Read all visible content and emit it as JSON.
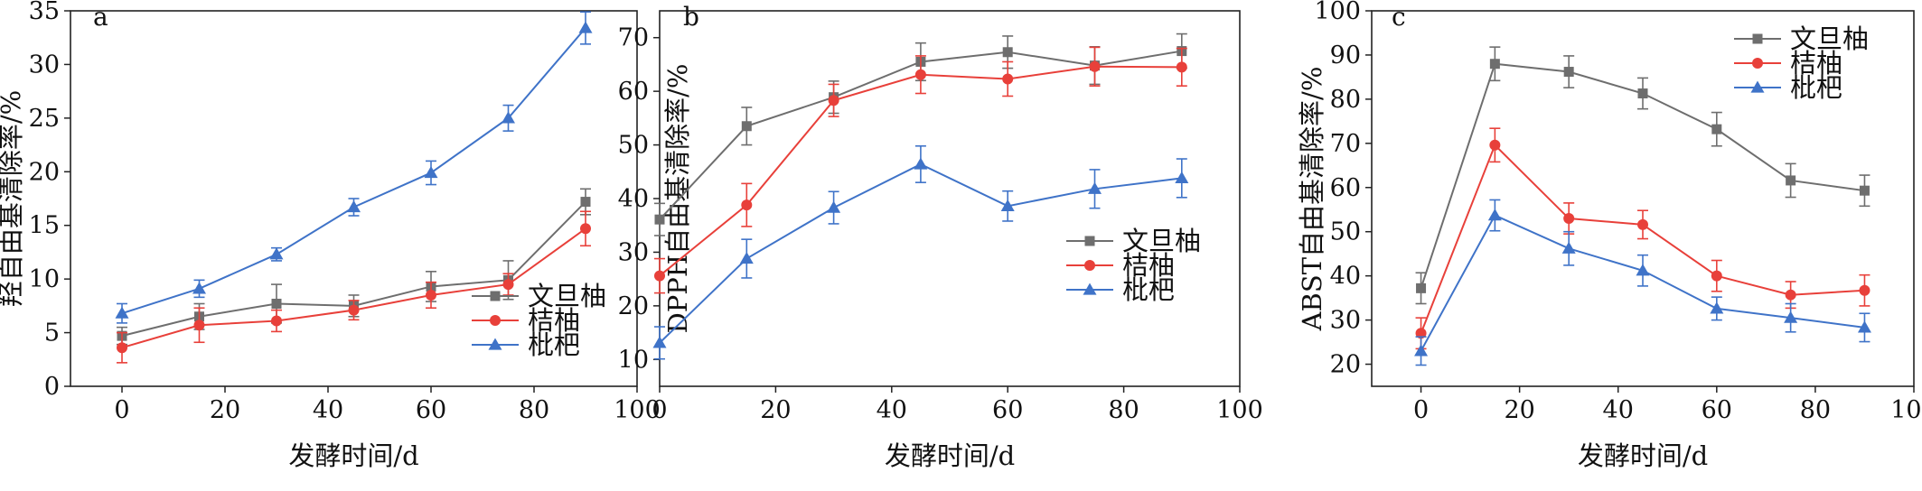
{
  "chart_data": [
    {
      "type": "line",
      "panel_label": "a",
      "xlabel": "发酵时间/d",
      "ylabel": "羟自由基清除率/%",
      "xlim": [
        -10,
        100
      ],
      "ylim": [
        0,
        35
      ],
      "x_ticks": [
        "0",
        "20",
        "40",
        "60",
        "80",
        "100"
      ],
      "y_ticks": [
        "0",
        "5",
        "10",
        "15",
        "20",
        "25",
        "30",
        "35"
      ],
      "legend_position": "lower-right",
      "x": [
        0,
        15,
        30,
        45,
        60,
        75,
        90
      ],
      "series": [
        {
          "name": "文旦柚",
          "color": "#6e6e6e",
          "marker": "square",
          "values": [
            4.7,
            6.5,
            7.7,
            7.5,
            9.3,
            9.9,
            17.2
          ],
          "errors": [
            0.8,
            1.2,
            1.8,
            1.0,
            1.4,
            1.8,
            1.2
          ]
        },
        {
          "name": "桔柚",
          "color": "#e8403a",
          "marker": "circle",
          "values": [
            3.6,
            5.7,
            6.1,
            7.1,
            8.5,
            9.5,
            14.7
          ],
          "errors": [
            1.4,
            1.6,
            1.0,
            0.9,
            1.2,
            1.0,
            1.6
          ]
        },
        {
          "name": "枇杷",
          "color": "#3f73c8",
          "marker": "triangle",
          "values": [
            6.8,
            9.1,
            12.3,
            16.7,
            19.9,
            25.0,
            33.4
          ],
          "errors": [
            0.9,
            0.8,
            0.6,
            0.8,
            1.1,
            1.2,
            1.5
          ]
        }
      ]
    },
    {
      "type": "line",
      "panel_label": "b",
      "xlabel": "发酵时间/d",
      "ylabel": "DPPH自由基清除率/%",
      "xlim": [
        0,
        100
      ],
      "ylim": [
        5,
        75
      ],
      "x_ticks": [
        "0",
        "20",
        "40",
        "60",
        "80",
        "100"
      ],
      "y_ticks": [
        "10",
        "20",
        "30",
        "40",
        "50",
        "60",
        "70"
      ],
      "legend_position": "middle-right",
      "x": [
        0,
        15,
        30,
        45,
        60,
        75,
        90
      ],
      "series": [
        {
          "name": "文旦柚",
          "color": "#6e6e6e",
          "marker": "square",
          "values": [
            36.1,
            53.5,
            58.9,
            65.5,
            67.3,
            64.8,
            67.5
          ],
          "errors": [
            3.0,
            3.5,
            3.0,
            3.5,
            3.0,
            3.5,
            3.2
          ]
        },
        {
          "name": "桔柚",
          "color": "#e8403a",
          "marker": "circle",
          "values": [
            25.6,
            38.8,
            58.3,
            63.1,
            62.3,
            64.6,
            64.5
          ],
          "errors": [
            3.2,
            4.0,
            3.0,
            3.5,
            3.2,
            3.6,
            3.5
          ]
        },
        {
          "name": "枇杷",
          "color": "#3f73c8",
          "marker": "triangle",
          "values": [
            13.1,
            28.8,
            38.3,
            46.4,
            38.6,
            41.8,
            43.8
          ],
          "errors": [
            3.0,
            3.6,
            3.0,
            3.4,
            2.8,
            3.6,
            3.6
          ]
        }
      ]
    },
    {
      "type": "line",
      "panel_label": "c",
      "xlabel": "发酵时间/d",
      "ylabel": "ABST自由基清除率/%",
      "xlim": [
        -10,
        100
      ],
      "ylim": [
        15,
        100
      ],
      "x_ticks": [
        "0",
        "20",
        "40",
        "60",
        "80",
        "100"
      ],
      "y_ticks": [
        "20",
        "30",
        "40",
        "50",
        "60",
        "70",
        "80",
        "90",
        "100"
      ],
      "legend_position": "top-right",
      "x": [
        0,
        15,
        30,
        45,
        60,
        75,
        90
      ],
      "series": [
        {
          "name": "文旦柚",
          "color": "#6e6e6e",
          "marker": "square",
          "values": [
            37.2,
            88.0,
            86.2,
            81.3,
            73.2,
            61.6,
            59.3
          ],
          "errors": [
            3.5,
            3.8,
            3.6,
            3.5,
            3.8,
            3.8,
            3.5
          ]
        },
        {
          "name": "桔柚",
          "color": "#e8403a",
          "marker": "circle",
          "values": [
            27.0,
            69.6,
            53.0,
            51.6,
            40.0,
            35.7,
            36.7
          ],
          "errors": [
            3.5,
            3.8,
            3.5,
            3.2,
            3.5,
            3.0,
            3.5
          ]
        },
        {
          "name": "枇杷",
          "color": "#3f73c8",
          "marker": "triangle",
          "values": [
            23.0,
            53.7,
            46.2,
            41.2,
            32.6,
            30.5,
            28.3
          ],
          "errors": [
            3.2,
            3.5,
            3.8,
            3.5,
            2.6,
            3.2,
            3.2
          ]
        }
      ]
    }
  ]
}
